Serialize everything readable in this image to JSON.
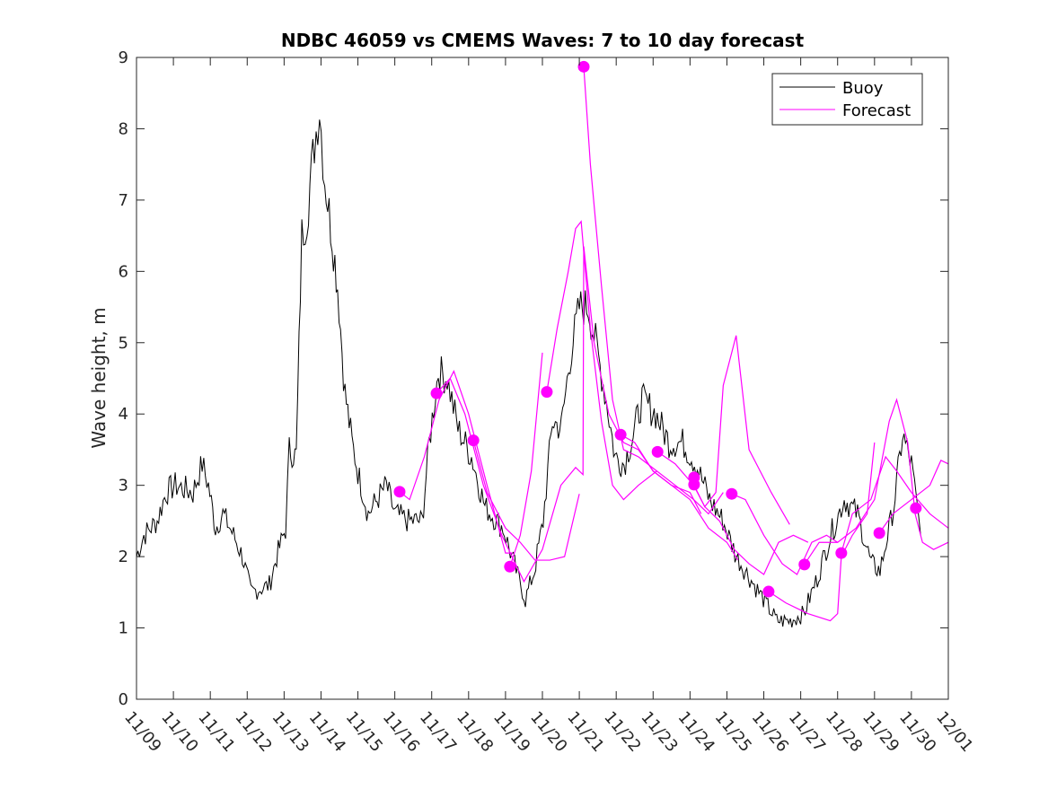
{
  "chart_data": {
    "type": "line",
    "title": "NDBC 46059 vs CMEMS Waves: 7 to 10 day forecast",
    "xlabel": "",
    "ylabel": "Wave height, m",
    "x_units": "days since 11/09",
    "xlim": [
      0,
      22
    ],
    "ylim": [
      0,
      9
    ],
    "x_ticks": [
      "11/09",
      "11/10",
      "11/11",
      "11/12",
      "11/13",
      "11/14",
      "11/15",
      "11/16",
      "11/17",
      "11/18",
      "11/19",
      "11/20",
      "11/21",
      "11/22",
      "11/23",
      "11/24",
      "11/25",
      "11/26",
      "11/27",
      "11/28",
      "11/29",
      "11/30",
      "12/01"
    ],
    "y_ticks": [
      "0",
      "1",
      "2",
      "3",
      "4",
      "5",
      "6",
      "7",
      "8",
      "9"
    ],
    "grid": false,
    "legend": {
      "placement": "top-right",
      "entries": [
        "Buoy",
        "Forecast"
      ]
    },
    "colors": {
      "buoy": "#000000",
      "forecast": "#ff00ff"
    },
    "buoy": [
      [
        0,
        2.0
      ],
      [
        0.2,
        2.3
      ],
      [
        0.56,
        2.5
      ],
      [
        0.8,
        2.9
      ],
      [
        1.05,
        3.0
      ],
      [
        1.53,
        2.9
      ],
      [
        1.78,
        3.3
      ],
      [
        1.95,
        3.0
      ],
      [
        2.14,
        2.4
      ],
      [
        2.34,
        2.6
      ],
      [
        2.63,
        2.3
      ],
      [
        2.87,
        2.0
      ],
      [
        3.1,
        1.5
      ],
      [
        3.6,
        1.6
      ],
      [
        3.8,
        2.0
      ],
      [
        4.04,
        2.4
      ],
      [
        4.14,
        3.5
      ],
      [
        4.33,
        3.4
      ],
      [
        4.48,
        6.5
      ],
      [
        4.62,
        6.8
      ],
      [
        4.82,
        7.8
      ],
      [
        4.96,
        8.3
      ],
      [
        5.1,
        7.3
      ],
      [
        5.3,
        6.5
      ],
      [
        5.45,
        5.8
      ],
      [
        5.65,
        4.3
      ],
      [
        5.84,
        3.6
      ],
      [
        6.04,
        3.1
      ],
      [
        6.28,
        2.6
      ],
      [
        6.52,
        2.8
      ],
      [
        6.77,
        3.0
      ],
      [
        7.0,
        2.6
      ],
      [
        7.37,
        2.5
      ],
      [
        7.74,
        2.5
      ],
      [
        7.93,
        3.6
      ],
      [
        8.18,
        4.6
      ],
      [
        8.42,
        4.5
      ],
      [
        8.71,
        3.8
      ],
      [
        9.08,
        3.4
      ],
      [
        9.44,
        2.7
      ],
      [
        9.93,
        2.4
      ],
      [
        10.29,
        1.8
      ],
      [
        10.54,
        1.4
      ],
      [
        10.78,
        1.8
      ],
      [
        11.02,
        2.5
      ],
      [
        11.27,
        3.9
      ],
      [
        11.51,
        3.8
      ],
      [
        11.75,
        4.8
      ],
      [
        12.0,
        5.5
      ],
      [
        12.24,
        5.5
      ],
      [
        12.48,
        4.9
      ],
      [
        12.73,
        4.2
      ],
      [
        12.97,
        3.4
      ],
      [
        13.21,
        3.3
      ],
      [
        13.46,
        3.7
      ],
      [
        13.7,
        4.2
      ],
      [
        14.07,
        4.0
      ],
      [
        14.43,
        3.6
      ],
      [
        14.8,
        3.6
      ],
      [
        15.16,
        3.3
      ],
      [
        15.53,
        2.8
      ],
      [
        15.89,
        2.5
      ],
      [
        16.26,
        2.0
      ],
      [
        16.62,
        1.7
      ],
      [
        16.99,
        1.4
      ],
      [
        17.35,
        1.1
      ],
      [
        17.72,
        1.1
      ],
      [
        18.08,
        1.2
      ],
      [
        18.45,
        1.7
      ],
      [
        18.81,
        2.3
      ],
      [
        19.18,
        2.8
      ],
      [
        19.54,
        2.6
      ],
      [
        19.91,
        1.9
      ],
      [
        20.15,
        1.8
      ],
      [
        20.52,
        2.7
      ],
      [
        20.76,
        3.7
      ],
      [
        21.0,
        3.3
      ],
      [
        21.25,
        2.3
      ]
    ],
    "forecast_lines": [
      [
        [
          7.13,
          2.91
        ],
        [
          7.4,
          2.8
        ],
        [
          7.8,
          3.4
        ],
        [
          8.2,
          4.2
        ],
        [
          8.6,
          4.6
        ],
        [
          9.0,
          4.0
        ],
        [
          9.5,
          3.0
        ],
        [
          10.0,
          2.05
        ],
        [
          10.2,
          2.05
        ]
      ],
      [
        [
          8.13,
          4.29
        ],
        [
          8.5,
          4.5
        ],
        [
          8.9,
          4.0
        ],
        [
          9.4,
          3.0
        ],
        [
          9.9,
          2.3
        ],
        [
          10.5,
          1.65
        ],
        [
          11.0,
          2.1
        ],
        [
          11.5,
          3.0
        ],
        [
          11.9,
          3.25
        ],
        [
          12.1,
          3.15
        ],
        [
          12.12,
          6.35
        ],
        [
          12.4,
          5.0
        ],
        [
          12.8,
          4.0
        ],
        [
          13.2,
          3.6
        ],
        [
          13.6,
          3.5
        ],
        [
          14.0,
          3.2
        ],
        [
          14.5,
          3.0
        ],
        [
          15.0,
          2.9
        ],
        [
          15.3,
          2.6
        ]
      ],
      [
        [
          9.13,
          3.63
        ],
        [
          9.5,
          2.9
        ],
        [
          10.0,
          2.4
        ],
        [
          10.4,
          2.2
        ],
        [
          10.8,
          1.95
        ],
        [
          11.2,
          1.95
        ],
        [
          11.6,
          2.0
        ],
        [
          12.0,
          2.88
        ]
      ],
      [
        [
          10.12,
          1.86
        ],
        [
          10.4,
          2.3
        ],
        [
          10.7,
          3.2
        ],
        [
          11.0,
          4.86
        ]
      ],
      [
        [
          11.12,
          4.31
        ],
        [
          11.4,
          5.2
        ],
        [
          11.7,
          6.0
        ],
        [
          11.9,
          6.6
        ],
        [
          12.05,
          6.7
        ],
        [
          12.3,
          5.2
        ],
        [
          12.6,
          3.9
        ],
        [
          12.9,
          3.0
        ],
        [
          13.2,
          2.8
        ],
        [
          13.6,
          3.0
        ],
        [
          14.1,
          3.2
        ]
      ],
      [
        [
          12.12,
          8.87
        ],
        [
          12.3,
          7.5
        ],
        [
          12.6,
          5.8
        ],
        [
          12.9,
          4.2
        ],
        [
          13.2,
          3.5
        ],
        [
          13.6,
          3.4
        ],
        [
          14.1,
          3.2
        ],
        [
          14.6,
          3.0
        ],
        [
          15.1,
          2.8
        ],
        [
          15.5,
          2.6
        ],
        [
          15.9,
          2.9
        ]
      ],
      [
        [
          13.12,
          3.71
        ],
        [
          13.5,
          3.6
        ],
        [
          14.0,
          3.2
        ],
        [
          14.5,
          3.0
        ],
        [
          15.0,
          2.8
        ],
        [
          15.5,
          2.4
        ],
        [
          16.0,
          2.2
        ],
        [
          16.3,
          1.95
        ]
      ],
      [
        [
          14.12,
          3.47
        ],
        [
          14.6,
          3.3
        ],
        [
          15.1,
          3.0
        ],
        [
          15.4,
          2.7
        ],
        [
          15.7,
          2.9
        ],
        [
          15.9,
          4.4
        ],
        [
          16.25,
          5.1
        ],
        [
          16.6,
          3.5
        ],
        [
          17.2,
          2.9
        ],
        [
          17.7,
          2.45
        ]
      ],
      [
        [
          15.11,
          3.0
        ],
        [
          15.4,
          2.7
        ],
        [
          15.8,
          2.5
        ],
        [
          16.2,
          2.1
        ],
        [
          16.6,
          1.9
        ],
        [
          17.0,
          1.75
        ],
        [
          17.4,
          2.2
        ],
        [
          17.8,
          2.3
        ],
        [
          18.2,
          2.2
        ]
      ],
      [
        [
          16.13,
          2.88
        ],
        [
          16.5,
          2.8
        ],
        [
          17.0,
          2.3
        ],
        [
          17.5,
          1.9
        ],
        [
          17.9,
          1.75
        ],
        [
          18.3,
          2.2
        ],
        [
          18.7,
          2.3
        ],
        [
          19.0,
          2.2
        ]
      ],
      [
        [
          17.13,
          1.51
        ],
        [
          17.6,
          1.35
        ],
        [
          18.2,
          1.2
        ],
        [
          18.8,
          1.1
        ],
        [
          19.0,
          1.2
        ],
        [
          19.1,
          2.0
        ],
        [
          19.4,
          2.3
        ],
        [
          19.8,
          2.6
        ],
        [
          20.0,
          3.6
        ]
      ],
      [
        [
          18.1,
          1.89
        ],
        [
          18.5,
          2.2
        ],
        [
          19.0,
          2.2
        ],
        [
          19.5,
          2.4
        ],
        [
          20.0,
          2.8
        ],
        [
          20.4,
          3.9
        ],
        [
          20.6,
          4.2
        ],
        [
          20.9,
          3.6
        ],
        [
          21.1,
          2.6
        ],
        [
          21.3,
          2.2
        ],
        [
          21.6,
          2.1
        ],
        [
          22.0,
          2.2
        ]
      ],
      [
        [
          19.1,
          2.05
        ],
        [
          19.4,
          2.6
        ],
        [
          19.9,
          2.8
        ],
        [
          20.3,
          3.4
        ],
        [
          20.6,
          3.2
        ],
        [
          21.0,
          2.9
        ],
        [
          21.5,
          2.6
        ],
        [
          22.0,
          2.4
        ]
      ],
      [
        [
          20.13,
          2.33
        ],
        [
          20.5,
          2.6
        ],
        [
          21.0,
          2.8
        ],
        [
          21.5,
          3.0
        ],
        [
          21.8,
          3.35
        ],
        [
          22.0,
          3.3
        ]
      ]
    ],
    "forecast_markers": [
      [
        7.13,
        2.91
      ],
      [
        8.13,
        4.29
      ],
      [
        9.13,
        3.63
      ],
      [
        10.12,
        1.86
      ],
      [
        11.12,
        4.31
      ],
      [
        12.12,
        8.87
      ],
      [
        13.12,
        3.71
      ],
      [
        14.12,
        3.47
      ],
      [
        15.11,
        3.11
      ],
      [
        15.11,
        3.01
      ],
      [
        16.13,
        2.88
      ],
      [
        17.13,
        1.51
      ],
      [
        18.1,
        1.89
      ],
      [
        19.1,
        2.05
      ],
      [
        20.13,
        2.33
      ],
      [
        21.12,
        2.68
      ]
    ]
  }
}
